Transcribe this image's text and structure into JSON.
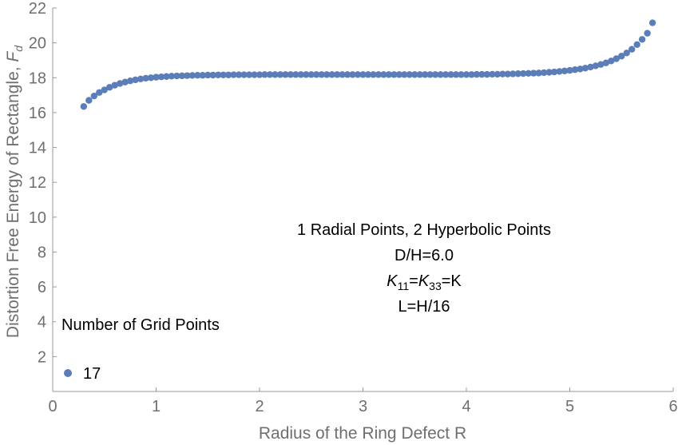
{
  "chart_data": {
    "type": "scatter",
    "xlabel": "Radius of the Ring Defect R",
    "ylabel_main": "Distortion Free Energy of Rectangle, ",
    "ylabel_symbol": "F",
    "ylabel_sub": "d",
    "xlim": [
      0,
      6
    ],
    "ylim": [
      0,
      22
    ],
    "xticks": [
      "0",
      "1",
      "2",
      "3",
      "4",
      "5",
      "6"
    ],
    "yticks": [
      "2",
      "4",
      "6",
      "8",
      "10",
      "12",
      "14",
      "16",
      "18",
      "20",
      "22"
    ],
    "xtick_values": [
      0,
      1,
      2,
      3,
      4,
      5,
      6
    ],
    "ytick_values": [
      2,
      4,
      6,
      8,
      10,
      12,
      14,
      16,
      18,
      20,
      22
    ],
    "grid": false,
    "legend_position": "bottom-left",
    "annotations": {
      "line1": "1 Radial Points, 2 Hyperbolic Points",
      "line2": "D/H=6.0",
      "k_sym1": "K",
      "k_sub1": "11",
      "k_eq1": "=",
      "k_sym2": "K",
      "k_sub2": "33",
      "k_eq2": "=K",
      "line4": "L=H/16"
    },
    "legend_title": "Number of Grid Points",
    "series": [
      {
        "name": "17",
        "color": "#5b7db8",
        "x": [
          0.3,
          0.35,
          0.4,
          0.45,
          0.5,
          0.55,
          0.6,
          0.65,
          0.7,
          0.75,
          0.8,
          0.85,
          0.9,
          0.95,
          1.0,
          1.05,
          1.1,
          1.15,
          1.2,
          1.25,
          1.3,
          1.35,
          1.4,
          1.45,
          1.5,
          1.55,
          1.6,
          1.65,
          1.7,
          1.75,
          1.8,
          1.85,
          1.9,
          1.95,
          2.0,
          2.05,
          2.1,
          2.15,
          2.2,
          2.25,
          2.3,
          2.35,
          2.4,
          2.45,
          2.5,
          2.55,
          2.6,
          2.65,
          2.7,
          2.75,
          2.8,
          2.85,
          2.9,
          2.95,
          3.0,
          3.05,
          3.1,
          3.15,
          3.2,
          3.25,
          3.3,
          3.35,
          3.4,
          3.45,
          3.5,
          3.55,
          3.6,
          3.65,
          3.7,
          3.75,
          3.8,
          3.85,
          3.9,
          3.95,
          4.0,
          4.05,
          4.1,
          4.15,
          4.2,
          4.25,
          4.3,
          4.35,
          4.4,
          4.45,
          4.5,
          4.55,
          4.6,
          4.65,
          4.7,
          4.75,
          4.8,
          4.85,
          4.9,
          4.95,
          5.0,
          5.05,
          5.1,
          5.15,
          5.2,
          5.25,
          5.3,
          5.35,
          5.4,
          5.45,
          5.5,
          5.55,
          5.6,
          5.65,
          5.7,
          5.75,
          5.8
        ],
        "y": [
          16.35,
          16.7,
          16.95,
          17.15,
          17.3,
          17.45,
          17.57,
          17.67,
          17.75,
          17.82,
          17.88,
          17.93,
          17.97,
          18.0,
          18.03,
          18.05,
          18.07,
          18.09,
          18.1,
          18.11,
          18.12,
          18.13,
          18.14,
          18.14,
          18.15,
          18.15,
          18.16,
          18.16,
          18.16,
          18.17,
          18.17,
          18.17,
          18.17,
          18.17,
          18.17,
          18.18,
          18.18,
          18.18,
          18.18,
          18.18,
          18.18,
          18.18,
          18.18,
          18.18,
          18.18,
          18.18,
          18.18,
          18.18,
          18.18,
          18.18,
          18.18,
          18.18,
          18.18,
          18.18,
          18.18,
          18.18,
          18.18,
          18.18,
          18.18,
          18.18,
          18.18,
          18.18,
          18.18,
          18.18,
          18.18,
          18.18,
          18.18,
          18.18,
          18.18,
          18.18,
          18.18,
          18.18,
          18.18,
          18.18,
          18.18,
          18.18,
          18.19,
          18.19,
          18.19,
          18.2,
          18.2,
          18.21,
          18.21,
          18.22,
          18.23,
          18.24,
          18.25,
          18.26,
          18.27,
          18.29,
          18.31,
          18.33,
          18.36,
          18.39,
          18.42,
          18.46,
          18.5,
          18.55,
          18.61,
          18.68,
          18.76,
          18.85,
          18.96,
          19.09,
          19.24,
          19.42,
          19.63,
          19.9,
          20.2,
          20.55,
          21.15
        ]
      }
    ]
  }
}
